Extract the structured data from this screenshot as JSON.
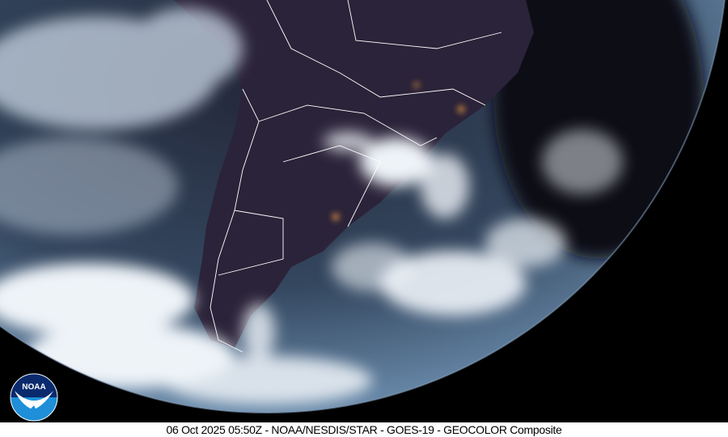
{
  "caption": "06 Oct 2025 05:50Z - NOAA/NESDIS/STAR - GOES-19 - GEOCOLOR Composite",
  "logo": {
    "text": "NOAA",
    "colors": {
      "top": "#0a2a6e",
      "bottom": "#1e8fd8",
      "bird": "#ffffff"
    }
  },
  "colors": {
    "space": "#000000",
    "ocean": "#3a4f66",
    "land_night": "#2a2238",
    "cloud": "#e8eef5",
    "borders": "#ffffff"
  }
}
